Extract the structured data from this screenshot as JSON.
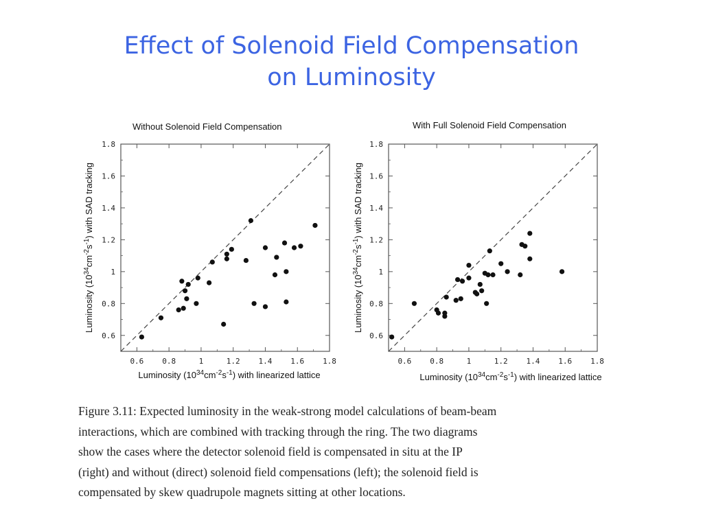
{
  "slide": {
    "title_line1": "Effect of Solenoid Field Compensation",
    "title_line2": "on Luminosity"
  },
  "chart_data": [
    {
      "type": "scatter",
      "title": "Without Solenoid Field Compensation",
      "xlabel": "Luminosity (10^34cm^-2s^-1) with linearized lattice",
      "ylabel": "Luminosity (10^34cm^-2s^-1) with SAD tracking",
      "xlim": [
        0.5,
        1.8
      ],
      "ylim": [
        0.5,
        1.8
      ],
      "xticks": [
        "0.6",
        "0.8",
        "1",
        "1.2",
        "1.4",
        "1.6",
        "1.8"
      ],
      "yticks": [
        "0.6",
        "0.8",
        "1",
        "1.2",
        "1.4",
        "1.6",
        "1.8"
      ],
      "reference_line": "y = x (dashed)",
      "grid": false,
      "points": [
        {
          "x": 0.63,
          "y": 0.59
        },
        {
          "x": 0.75,
          "y": 0.71
        },
        {
          "x": 0.86,
          "y": 0.76
        },
        {
          "x": 0.89,
          "y": 0.77
        },
        {
          "x": 0.88,
          "y": 0.94
        },
        {
          "x": 0.9,
          "y": 0.88
        },
        {
          "x": 0.91,
          "y": 0.83
        },
        {
          "x": 0.92,
          "y": 0.92
        },
        {
          "x": 0.97,
          "y": 0.8
        },
        {
          "x": 0.98,
          "y": 0.96
        },
        {
          "x": 1.05,
          "y": 0.93
        },
        {
          "x": 1.07,
          "y": 1.06
        },
        {
          "x": 1.14,
          "y": 0.67
        },
        {
          "x": 1.16,
          "y": 1.08
        },
        {
          "x": 1.16,
          "y": 1.11
        },
        {
          "x": 1.19,
          "y": 1.14
        },
        {
          "x": 1.28,
          "y": 1.07
        },
        {
          "x": 1.31,
          "y": 1.32
        },
        {
          "x": 1.33,
          "y": 0.8
        },
        {
          "x": 1.4,
          "y": 0.78
        },
        {
          "x": 1.4,
          "y": 1.15
        },
        {
          "x": 1.46,
          "y": 0.98
        },
        {
          "x": 1.47,
          "y": 1.09
        },
        {
          "x": 1.52,
          "y": 1.18
        },
        {
          "x": 1.53,
          "y": 1.0
        },
        {
          "x": 1.53,
          "y": 0.81
        },
        {
          "x": 1.58,
          "y": 1.15
        },
        {
          "x": 1.62,
          "y": 1.16
        },
        {
          "x": 1.71,
          "y": 1.29
        }
      ]
    },
    {
      "type": "scatter",
      "title": "With Full Solenoid Field Compensation",
      "xlabel": "Luminosity (10^34cm^-2s^-1) with linearized lattice",
      "ylabel": "Luminosity (10^34cm^-2s^-1) with SAD tracking",
      "xlim": [
        0.5,
        1.8
      ],
      "ylim": [
        0.5,
        1.8
      ],
      "xticks": [
        "0.6",
        "0.8",
        "1",
        "1.2",
        "1.4",
        "1.6",
        "1.8"
      ],
      "yticks": [
        "0.6",
        "0.8",
        "1",
        "1.2",
        "1.4",
        "1.6",
        "1.8"
      ],
      "reference_line": "y = x (dashed)",
      "grid": false,
      "points": [
        {
          "x": 0.52,
          "y": 0.59
        },
        {
          "x": 0.66,
          "y": 0.8
        },
        {
          "x": 0.8,
          "y": 0.76
        },
        {
          "x": 0.81,
          "y": 0.74
        },
        {
          "x": 0.85,
          "y": 0.72
        },
        {
          "x": 0.85,
          "y": 0.74
        },
        {
          "x": 0.86,
          "y": 0.84
        },
        {
          "x": 0.92,
          "y": 0.82
        },
        {
          "x": 0.93,
          "y": 0.95
        },
        {
          "x": 0.95,
          "y": 0.83
        },
        {
          "x": 0.96,
          "y": 0.94
        },
        {
          "x": 1.0,
          "y": 1.04
        },
        {
          "x": 1.0,
          "y": 0.96
        },
        {
          "x": 1.04,
          "y": 0.87
        },
        {
          "x": 1.05,
          "y": 0.86
        },
        {
          "x": 1.07,
          "y": 0.92
        },
        {
          "x": 1.08,
          "y": 0.88
        },
        {
          "x": 1.1,
          "y": 0.99
        },
        {
          "x": 1.11,
          "y": 0.8
        },
        {
          "x": 1.12,
          "y": 0.98
        },
        {
          "x": 1.13,
          "y": 1.13
        },
        {
          "x": 1.15,
          "y": 0.98
        },
        {
          "x": 1.2,
          "y": 1.05
        },
        {
          "x": 1.24,
          "y": 1.0
        },
        {
          "x": 1.32,
          "y": 0.98
        },
        {
          "x": 1.33,
          "y": 1.17
        },
        {
          "x": 1.35,
          "y": 1.16
        },
        {
          "x": 1.38,
          "y": 1.24
        },
        {
          "x": 1.38,
          "y": 1.08
        },
        {
          "x": 1.58,
          "y": 1.0
        }
      ]
    }
  ],
  "caption": {
    "line1": "Figure 3.11: Expected luminosity in the weak-strong model calculations of beam-beam",
    "line2": "interactions, which are combined with tracking through the ring.  The two diagrams",
    "line3": "show the cases where the detector solenoid field is compensated in situ at the IP",
    "line4": "(right) and without (direct) solenoid field compensations (left); the solenoid field is",
    "line5": "compensated by skew quadrupole magnets sitting at other locations."
  }
}
